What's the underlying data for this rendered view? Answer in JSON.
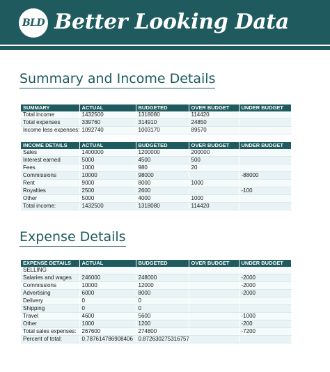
{
  "header": {
    "logo_text": "BLD",
    "title": "Better Looking Data"
  },
  "colors": {
    "brand": "#1e5a5e",
    "row_tint": "#e9f3f5"
  },
  "summary_section": {
    "title": "Summary and Income Details"
  },
  "summary_table": {
    "columns": [
      "SUMMARY",
      "ACTUAL",
      "BUDGETED",
      "OVER BUDGET",
      "UNDER BUDGET"
    ],
    "rows": [
      [
        "Total income",
        "1432500",
        "1318080",
        "114420",
        ""
      ],
      [
        "Total expenses",
        "339760",
        "314910",
        "24850",
        ""
      ],
      [
        "Income less expenses:",
        "1092740",
        "1003170",
        "89570",
        ""
      ]
    ]
  },
  "income_table": {
    "columns": [
      "INCOME DETAILS",
      "ACTUAL",
      "BUDGETED",
      "OVER BUDGET",
      "UNDER BUDGET"
    ],
    "rows": [
      [
        "Sales",
        "1400000",
        "1200000",
        "200000",
        ""
      ],
      [
        "Interest earned",
        "5000",
        "4500",
        "500",
        ""
      ],
      [
        "Fees",
        "1000",
        "980",
        "20",
        ""
      ],
      [
        "Commissions",
        "10000",
        "98000",
        "",
        "-88000"
      ],
      [
        "Rent",
        "9000",
        "8000",
        "1000",
        ""
      ],
      [
        "Royalties",
        "2500",
        "2600",
        "",
        "-100"
      ],
      [
        "Other",
        "5000",
        "4000",
        "1000",
        ""
      ],
      [
        "Total income:",
        "1432500",
        "1318080",
        "114420",
        ""
      ]
    ]
  },
  "expense_section": {
    "title": "Expense Details"
  },
  "expense_table": {
    "columns": [
      "EXPENSE DETAILS",
      "ACTUAL",
      "BUDGETED",
      "OVER BUDGET",
      "UNDER BUDGET"
    ],
    "rows": [
      [
        "SELLING",
        "",
        "",
        "",
        ""
      ],
      [
        "Salaries and wages",
        "246000",
        "248000",
        "",
        "-2000"
      ],
      [
        "Commissions",
        "10000",
        "12000",
        "",
        "-2000"
      ],
      [
        "Advertising",
        "6000",
        "8000",
        "",
        "-2000"
      ],
      [
        "Delivery",
        "0",
        "0",
        "",
        ""
      ],
      [
        "Shipping",
        "0",
        "0",
        "",
        ""
      ],
      [
        "Travel",
        "4600",
        "5600",
        "",
        "-1000"
      ],
      [
        "Other",
        "1000",
        "1200",
        "",
        "-200"
      ],
      [
        "Total sales expenses:",
        "267600",
        "274800",
        "",
        "-7200"
      ],
      [
        "Percent of total:",
        "0.787614786908406",
        "0.872630275316757",
        "",
        ""
      ]
    ]
  }
}
